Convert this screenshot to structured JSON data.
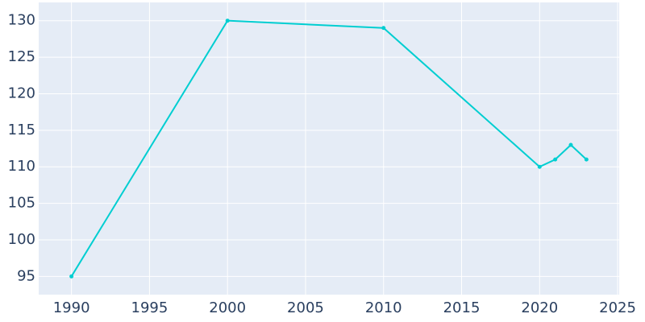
{
  "chart_data": {
    "type": "line",
    "x": [
      1990,
      2000,
      2010,
      2020,
      2021,
      2022,
      2023
    ],
    "series": [
      {
        "color": "#00ced1",
        "values": [
          95,
          130,
          129,
          110,
          111,
          113,
          111
        ]
      }
    ],
    "xlim": [
      1987.9,
      2025.1
    ],
    "ylim": [
      92.5,
      132.5
    ],
    "xticks": [
      1990,
      1995,
      2000,
      2005,
      2010,
      2015,
      2020,
      2025
    ],
    "yticks": [
      95,
      100,
      105,
      110,
      115,
      120,
      125,
      130
    ],
    "grid": true,
    "background": "#e5ecf6"
  }
}
